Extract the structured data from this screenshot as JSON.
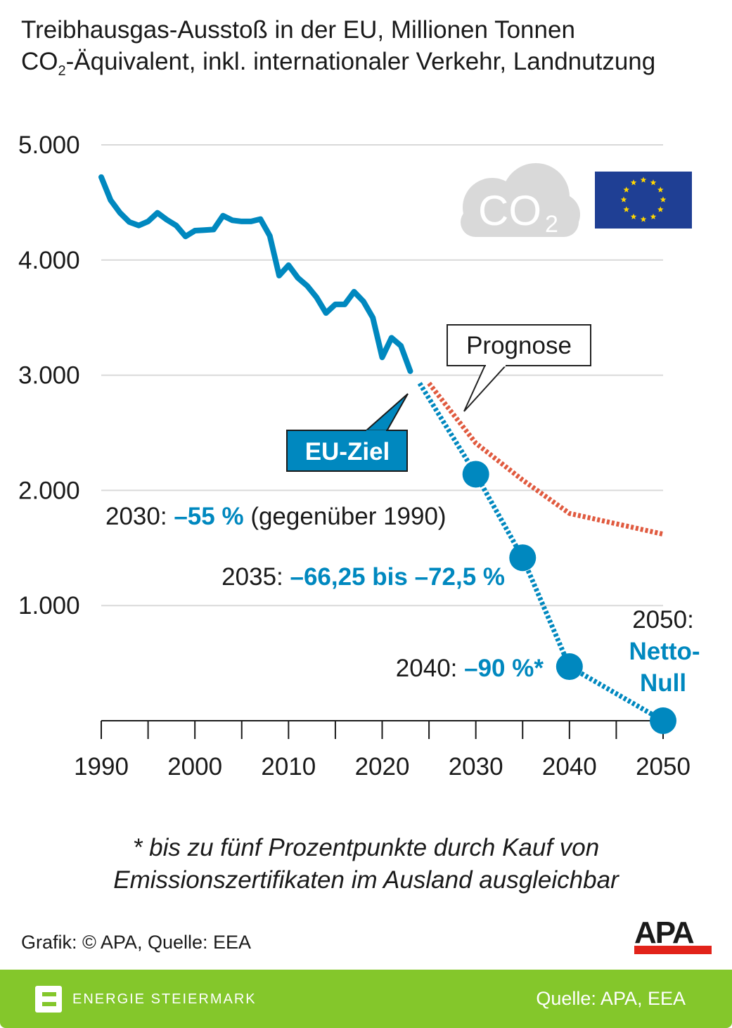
{
  "title_line1": "Treibhausgas-Ausstoß in der EU, Millionen Tonnen",
  "title_line2_pre": "CO",
  "title_line2_sub": "2",
  "title_line2_post": "-Äquivalent, inkl. internationaler Verkehr, Landnutzung",
  "colors": {
    "historic": "#0088bf",
    "target": "#0088bf",
    "forecast": "#e05a3f",
    "grid": "#d9d9d9",
    "footer": "#84c72b"
  },
  "icons": [
    "co2-cloud-icon",
    "eu-flag-icon",
    "energie-steiermark-logo",
    "apa-logo"
  ],
  "co2_icon_text": "CO2",
  "chart_data": {
    "type": "line",
    "ylim": [
      0,
      5000
    ],
    "xlim": [
      1990,
      2050
    ],
    "yticks": [
      "5.000",
      "4.000",
      "3.000",
      "2.000",
      "1.000"
    ],
    "ytick_values": [
      5000,
      4000,
      3000,
      2000,
      1000
    ],
    "xticks": [
      "1990",
      "2000",
      "2010",
      "2020",
      "2030",
      "2040",
      "2050"
    ],
    "xtick_values": [
      1990,
      2000,
      2010,
      2020,
      2030,
      2040,
      2050
    ],
    "grid": true,
    "series": [
      {
        "key": "historic",
        "style": "solid",
        "x": [
          1990,
          1991,
          1992,
          1993,
          1994,
          1995,
          1996,
          1997,
          1998,
          1999,
          2000,
          2001,
          2002,
          2003,
          2004,
          2005,
          2006,
          2007,
          2008,
          2009,
          2010,
          2011,
          2012,
          2013,
          2014,
          2015,
          2016,
          2017,
          2018,
          2019,
          2020,
          2021,
          2022,
          2023
        ],
        "y": [
          4720,
          4520,
          4410,
          4330,
          4300,
          4335,
          4410,
          4350,
          4300,
          4205,
          4255,
          4260,
          4265,
          4385,
          4345,
          4335,
          4335,
          4355,
          4210,
          3865,
          3955,
          3845,
          3775,
          3675,
          3540,
          3615,
          3615,
          3725,
          3640,
          3500,
          3155,
          3325,
          3255,
          3035
        ]
      },
      {
        "key": "target",
        "style": "dotted",
        "label": "EU-Ziel",
        "x": [
          2024,
          2030,
          2035,
          2040,
          2050
        ],
        "y": [
          2930,
          2140,
          1415,
          470,
          0
        ],
        "markers": [
          2030,
          2035,
          2040,
          2050
        ]
      },
      {
        "key": "forecast",
        "style": "dotted",
        "label": "Prognose",
        "x": [
          2025,
          2030,
          2035,
          2040,
          2050
        ],
        "y": [
          2930,
          2410,
          2090,
          1800,
          1620
        ]
      }
    ],
    "annotations": {
      "prognose": "Prognose",
      "eu_ziel": "EU-Ziel",
      "a2030": {
        "year": "2030:",
        "value": "–55 %",
        "rest": "(gegenüber 1990)"
      },
      "a2035": {
        "year": "2035:",
        "value": "–66,25 bis –72,5 %"
      },
      "a2040": {
        "year": "2040:",
        "value": "–90 %*"
      },
      "a2050": {
        "year": "2050:",
        "value1": "Netto-",
        "value2": "Null"
      }
    }
  },
  "footnote_line1": "* bis zu fünf Prozentpunkte durch Kauf von",
  "footnote_line2": "Emissionszertifikaten im Ausland ausgleichbar",
  "credit": "Grafik: © APA, Quelle: EEA",
  "apa_logo_text": "APA",
  "footer": {
    "brand": "ENERGIE STEIERMARK",
    "source": "Quelle: APA, EEA"
  }
}
